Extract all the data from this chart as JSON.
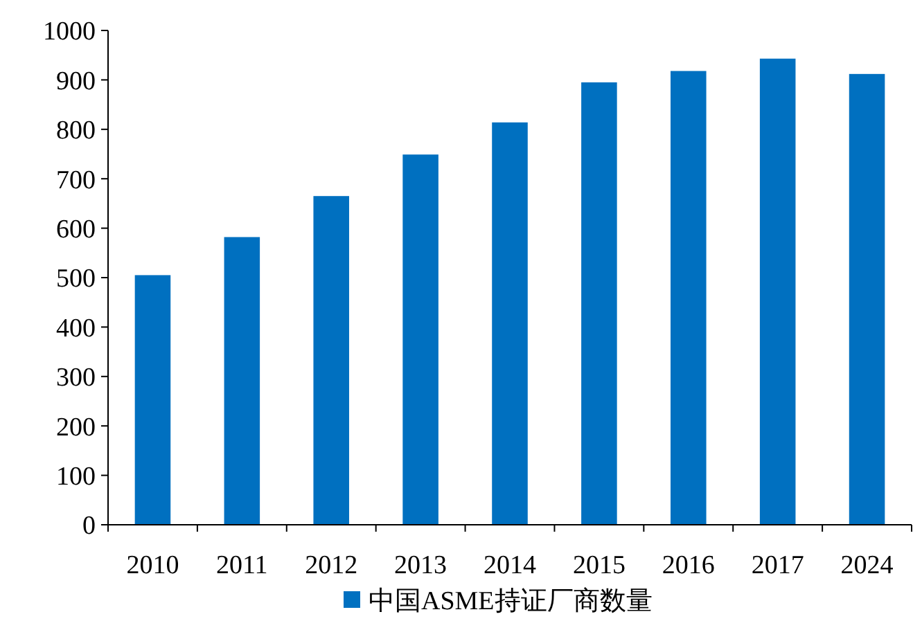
{
  "chart_data": {
    "type": "bar",
    "categories": [
      "2010",
      "2011",
      "2012",
      "2013",
      "2014",
      "2015",
      "2016",
      "2017",
      "2024"
    ],
    "series": [
      {
        "name": "中国ASME持证厂商数量",
        "color": "#0070c0",
        "values": [
          505,
          582,
          665,
          749,
          814,
          895,
          918,
          943,
          912
        ]
      }
    ],
    "ylim": [
      0,
      1000
    ],
    "yticks": [
      0,
      100,
      200,
      300,
      400,
      500,
      600,
      700,
      800,
      900,
      1000
    ],
    "grid": false,
    "legend": "bottom"
  }
}
